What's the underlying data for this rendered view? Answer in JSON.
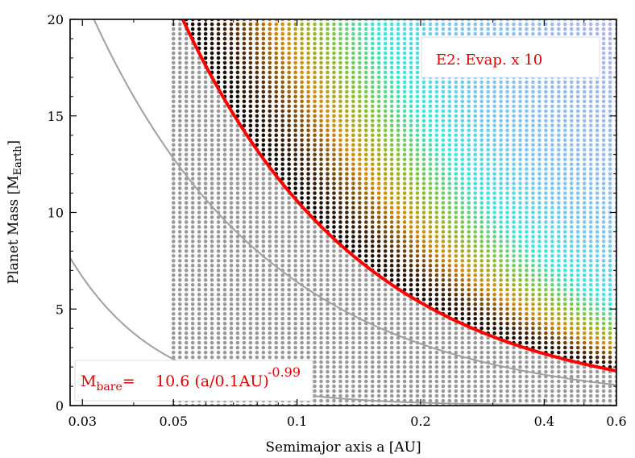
{
  "chart_data": {
    "type": "scatter",
    "xlabel": "Semimajor axis a [AU]",
    "ylabel_main": "Planet Mass [M",
    "ylabel_sub": "Earth",
    "ylabel_end": "]",
    "x_scale": "log",
    "xlim": [
      0.028,
      0.6
    ],
    "ylim": [
      0,
      20
    ],
    "x_ticks": [
      {
        "value": 0.03,
        "label": "0.03"
      },
      {
        "value": 0.05,
        "label": "0.05"
      },
      {
        "value": 0.1,
        "label": "0.1"
      },
      {
        "value": 0.2,
        "label": "0.2"
      },
      {
        "value": 0.4,
        "label": "0.4"
      },
      {
        "value": 0.6,
        "label": "0.6"
      }
    ],
    "y_ticks": [
      {
        "value": 0,
        "label": "0"
      },
      {
        "value": 5,
        "label": "5"
      },
      {
        "value": 10,
        "label": "10"
      },
      {
        "value": 15,
        "label": "15"
      },
      {
        "value": 20,
        "label": "20"
      }
    ],
    "grid": false,
    "annotation_top": "E2: Evap. x 10",
    "fit_label": {
      "m": "M",
      "sub": "bare",
      "eq": "=",
      "body": "10.6 (a/0.1AU)",
      "exp": "-0.99"
    },
    "fit_curve": {
      "coefficient": 10.6,
      "reference_a": 0.1,
      "exponent": -0.99,
      "color": "#ff0000"
    },
    "gray_curves": [
      {
        "coefficient": 6.4,
        "reference_a": 0.1,
        "exponent": -1.0,
        "color": "#a0a0a0"
      },
      {
        "coefficient": 0.6,
        "reference_a": 0.1,
        "exponent": -2.0,
        "color": "#a0a0a0"
      }
    ],
    "grid_points": {
      "a_min": 0.05,
      "a_max": 0.6,
      "columns": 70,
      "mass_min": 0.0,
      "mass_max": 20.0,
      "mass_step": 0.25
    },
    "colors": {
      "bare_core": "#999999",
      "retained_low": "#000000",
      "retained_mid": "#e0900a",
      "retained_green": "#7ec83c",
      "retained_cyan": "#3ee6e6",
      "retained_blue": "#a8b4f0"
    }
  }
}
